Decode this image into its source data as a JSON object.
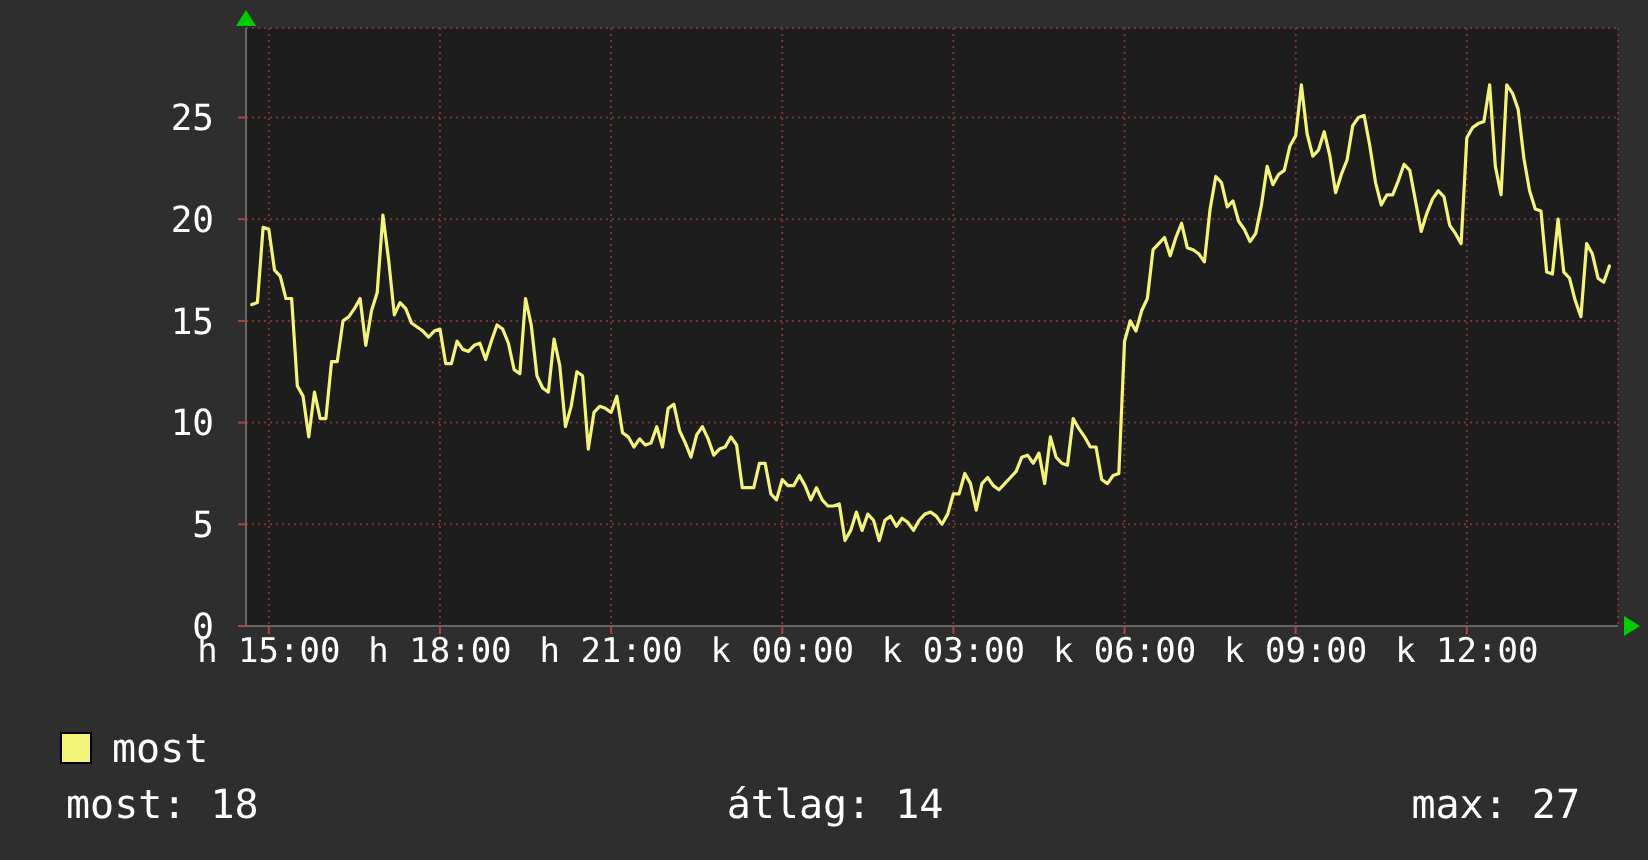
{
  "chart_data": {
    "type": "line",
    "legend": "bottom left",
    "grid": true,
    "annotations": [
      "most: 18",
      "átlag: 14",
      "max: 27"
    ],
    "ylim": [
      0,
      29.4
    ],
    "yticks": [
      0,
      5,
      10,
      15,
      20,
      25
    ],
    "categories": [
      null,
      null,
      null,
      "h 15:00",
      null,
      null,
      null,
      null,
      null,
      null,
      null,
      null,
      null,
      null,
      null,
      null,
      null,
      null,
      null,
      null,
      null,
      null,
      null,
      null,
      null,
      null,
      null,
      null,
      null,
      null,
      null,
      null,
      null,
      "h 18:00",
      null,
      null,
      null,
      null,
      null,
      null,
      null,
      null,
      null,
      null,
      null,
      null,
      null,
      null,
      null,
      null,
      null,
      null,
      null,
      null,
      null,
      null,
      null,
      null,
      null,
      null,
      null,
      null,
      null,
      "h 21:00",
      null,
      null,
      null,
      null,
      null,
      null,
      null,
      null,
      null,
      null,
      null,
      null,
      null,
      null,
      null,
      null,
      null,
      null,
      null,
      null,
      null,
      null,
      null,
      null,
      null,
      null,
      null,
      null,
      null,
      "k 00:00",
      null,
      null,
      null,
      null,
      null,
      null,
      null,
      null,
      null,
      null,
      null,
      null,
      null,
      null,
      null,
      null,
      null,
      null,
      null,
      null,
      null,
      null,
      null,
      null,
      null,
      null,
      null,
      null,
      null,
      "k 03:00",
      null,
      null,
      null,
      null,
      null,
      null,
      null,
      null,
      null,
      null,
      null,
      null,
      null,
      null,
      null,
      null,
      null,
      null,
      null,
      null,
      null,
      null,
      null,
      null,
      null,
      null,
      null,
      null,
      null,
      "k 06:00",
      null,
      null,
      null,
      null,
      null,
      null,
      null,
      null,
      null,
      null,
      null,
      null,
      null,
      null,
      null,
      null,
      null,
      null,
      null,
      null,
      null,
      null,
      null,
      null,
      null,
      null,
      null,
      null,
      null,
      "k 09:00",
      null,
      null,
      null,
      null,
      null,
      null,
      null,
      null,
      null,
      null,
      null,
      null,
      null,
      null,
      null,
      null,
      null,
      null,
      null,
      null,
      null,
      null,
      null,
      null,
      null,
      null,
      null,
      null,
      null,
      "k 12:00",
      null,
      null,
      null,
      null,
      null,
      null,
      null,
      null,
      null,
      null,
      null,
      null,
      null,
      null,
      null,
      null,
      null,
      null,
      null,
      null,
      null,
      null,
      null,
      null,
      null
    ],
    "series": [
      {
        "name": "most",
        "color": "#f4f47a",
        "values": [
          15.8,
          15.9,
          19.6,
          19.5,
          17.5,
          17.2,
          16.1,
          16.1,
          11.8,
          11.3,
          9.3,
          11.5,
          10.2,
          10.2,
          13.0,
          13.0,
          15.0,
          15.2,
          15.6,
          16.1,
          13.8,
          15.5,
          16.4,
          20.2,
          18.0,
          15.3,
          15.9,
          15.6,
          14.9,
          14.7,
          14.5,
          14.2,
          14.5,
          14.6,
          12.9,
          12.9,
          14.0,
          13.6,
          13.5,
          13.8,
          13.9,
          13.1,
          14.0,
          14.8,
          14.6,
          13.9,
          12.6,
          12.4,
          16.1,
          14.8,
          12.3,
          11.7,
          11.5,
          14.1,
          12.8,
          9.8,
          10.8,
          12.5,
          12.3,
          8.7,
          10.5,
          10.8,
          10.7,
          10.5,
          11.3,
          9.5,
          9.3,
          8.8,
          9.2,
          8.9,
          9.0,
          9.8,
          8.8,
          10.7,
          10.9,
          9.6,
          9.0,
          8.3,
          9.4,
          9.8,
          9.2,
          8.4,
          8.7,
          8.8,
          9.3,
          8.9,
          6.8,
          6.8,
          6.8,
          8.0,
          8.0,
          6.5,
          6.2,
          7.2,
          6.9,
          6.9,
          7.4,
          6.9,
          6.2,
          6.8,
          6.2,
          5.9,
          5.9,
          6.0,
          4.2,
          4.7,
          5.6,
          4.7,
          5.5,
          5.2,
          4.2,
          5.2,
          5.4,
          4.9,
          5.3,
          5.1,
          4.7,
          5.2,
          5.5,
          5.6,
          5.4,
          5.0,
          5.5,
          6.5,
          6.5,
          7.5,
          7.0,
          5.7,
          7.0,
          7.3,
          6.9,
          6.7,
          7.0,
          7.3,
          7.6,
          8.3,
          8.4,
          8.0,
          8.5,
          7.0,
          9.3,
          8.3,
          8.0,
          7.9,
          10.2,
          9.7,
          9.3,
          8.8,
          8.8,
          7.2,
          7.0,
          7.4,
          7.5,
          14.0,
          15.0,
          14.5,
          15.5,
          16.1,
          18.5,
          18.8,
          19.1,
          18.2,
          19.1,
          19.8,
          18.6,
          18.5,
          18.3,
          17.9,
          20.5,
          22.1,
          21.8,
          20.6,
          20.9,
          19.9,
          19.5,
          18.9,
          19.3,
          20.7,
          22.6,
          21.7,
          22.2,
          22.4,
          23.6,
          24.1,
          26.6,
          24.2,
          23.1,
          23.4,
          24.3,
          23.1,
          21.3,
          22.2,
          22.9,
          24.6,
          25.0,
          25.1,
          23.6,
          21.8,
          20.7,
          21.2,
          21.2,
          21.9,
          22.7,
          22.4,
          20.9,
          19.4,
          20.3,
          21.0,
          21.4,
          21.1,
          19.7,
          19.3,
          18.8,
          24.0,
          24.5,
          24.7,
          24.8,
          26.6,
          22.6,
          21.2,
          26.6,
          26.2,
          25.4,
          23.0,
          21.4,
          20.5,
          20.4,
          17.4,
          17.3,
          20.0,
          17.4,
          17.1,
          16.0,
          15.2,
          18.8,
          18.3,
          17.1,
          16.9,
          17.7
        ]
      }
    ]
  }
}
